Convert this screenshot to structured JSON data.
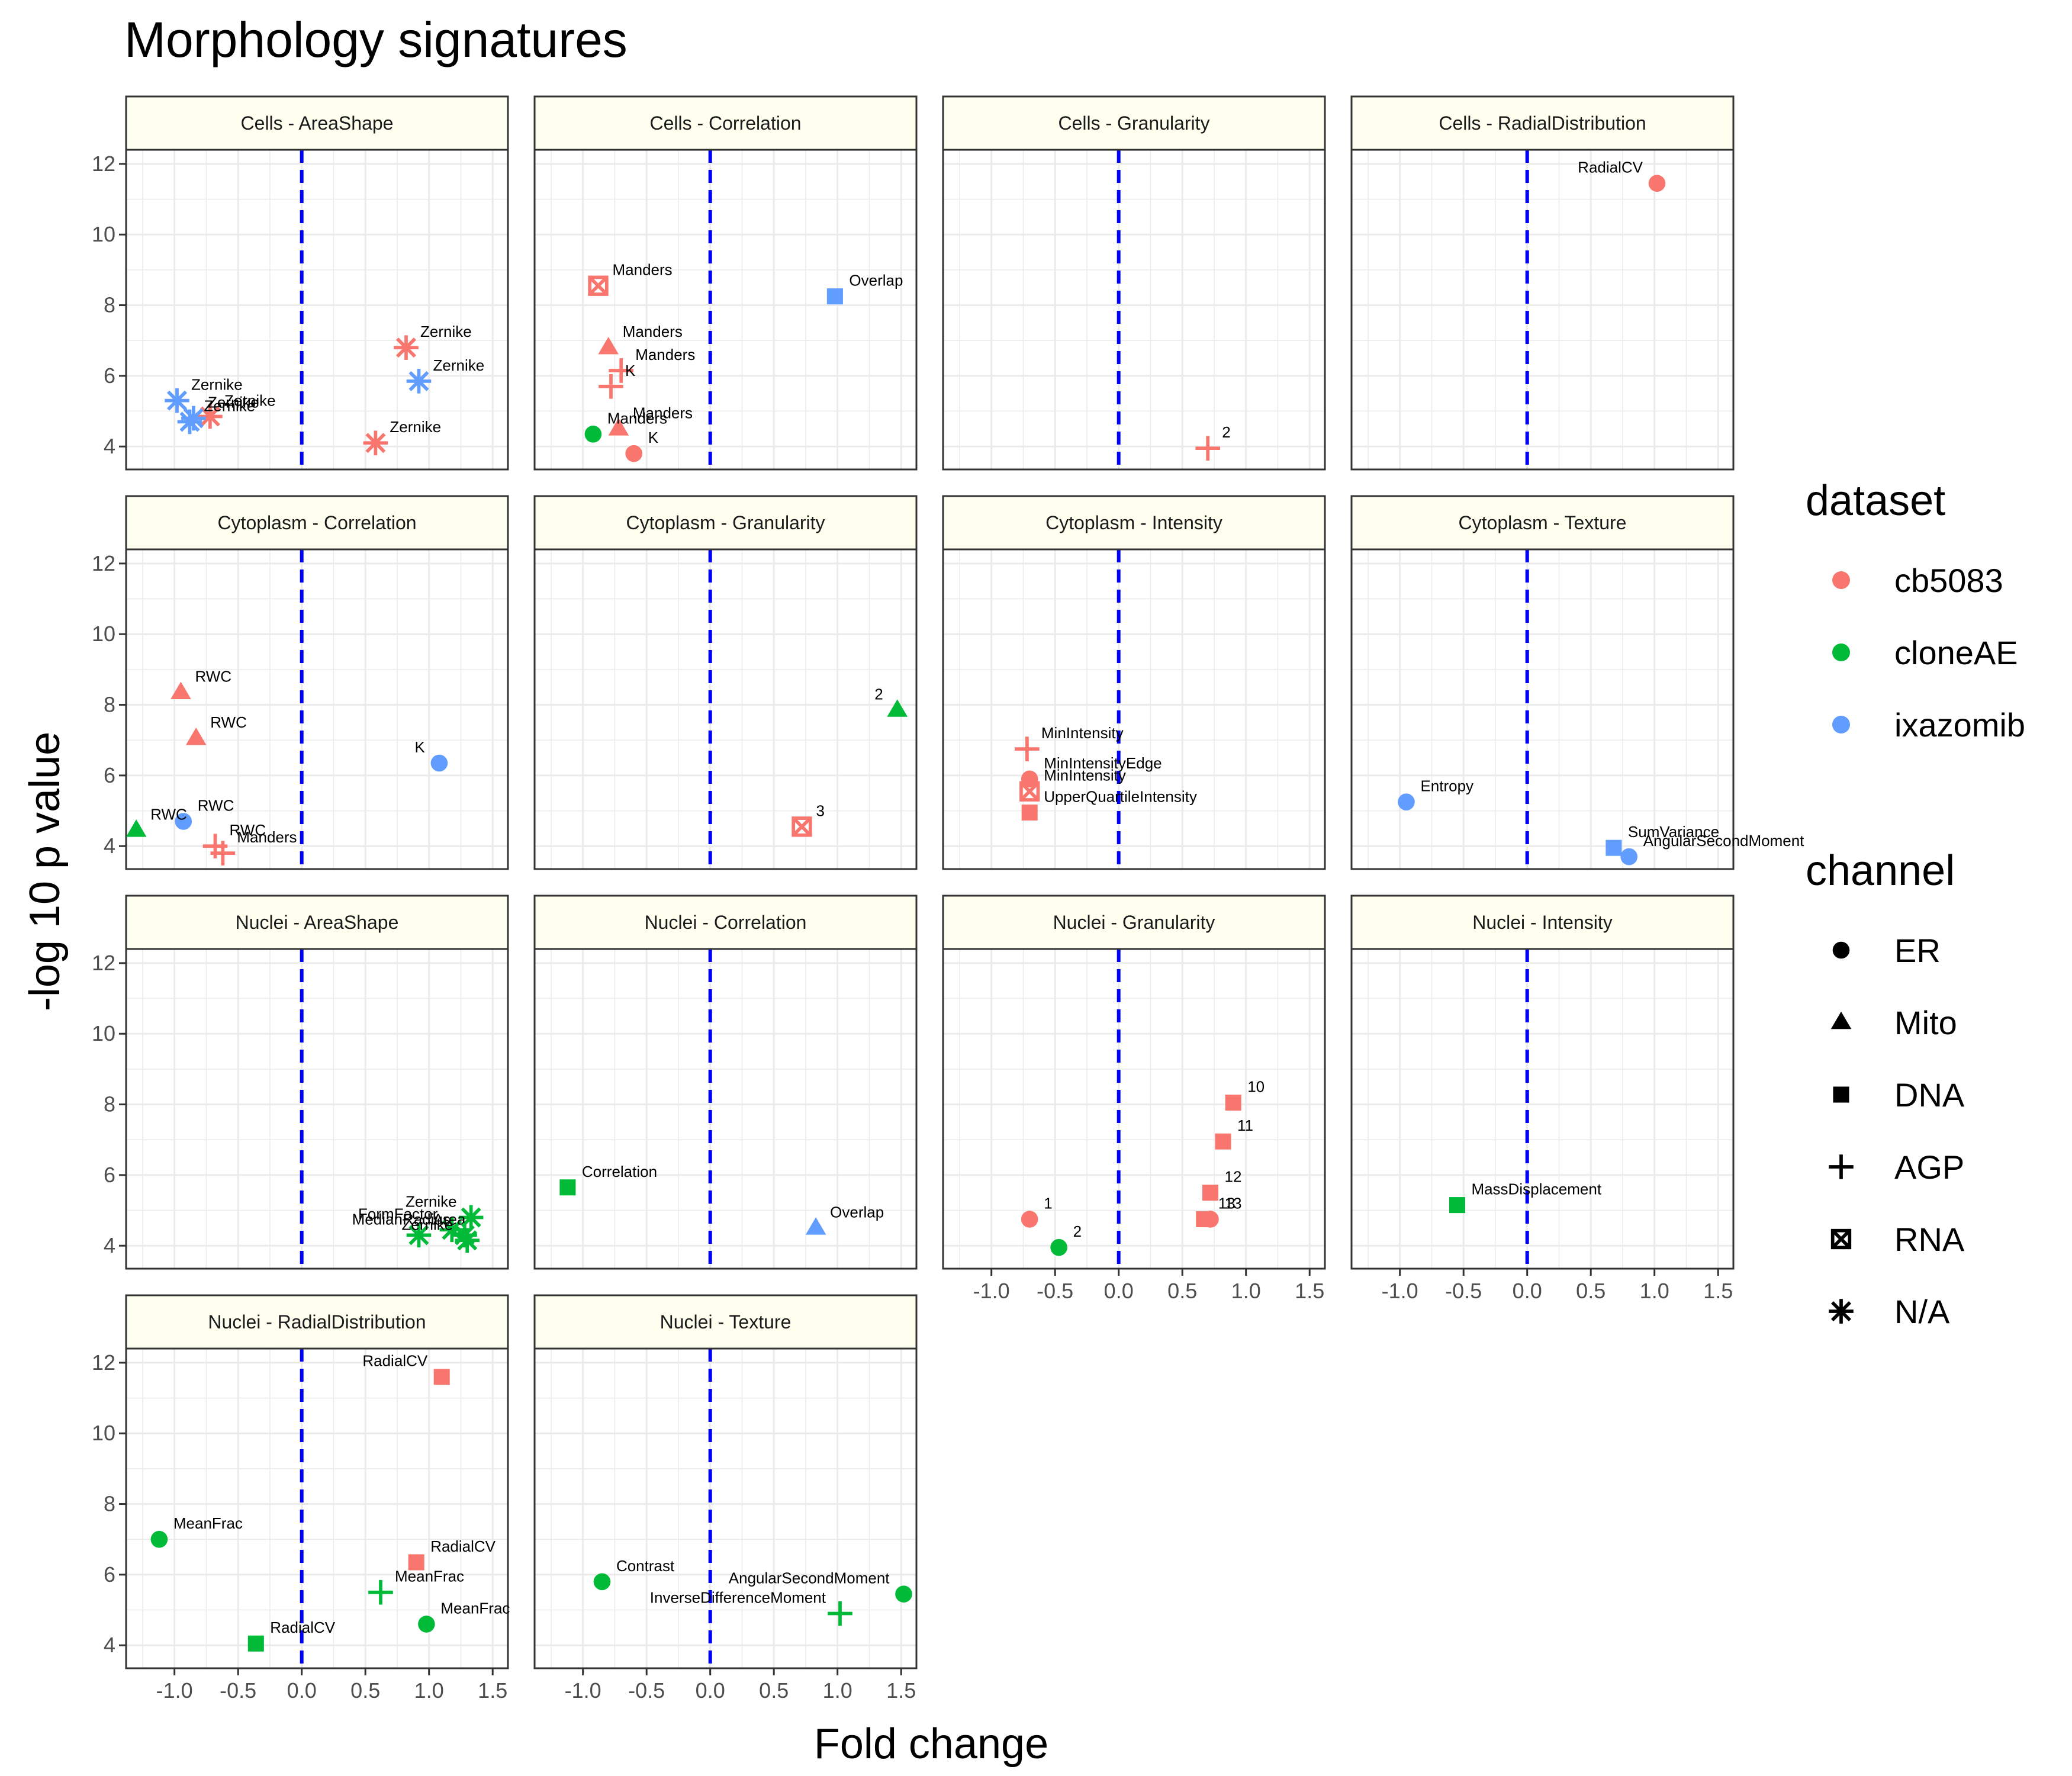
{
  "chart_data": {
    "type": "scatter",
    "title": "Morphology signatures",
    "xlabel": "Fold change",
    "ylabel": "-log 10 p value",
    "xlim": [
      -1.38,
      1.62
    ],
    "ylim": [
      3.35,
      12.4
    ],
    "xticks": [
      -1.0,
      -0.5,
      0.0,
      0.5,
      1.0,
      1.5
    ],
    "xtick_labels": [
      "-1.0",
      "-0.5",
      "0.0",
      "0.5",
      "1.0",
      "1.5"
    ],
    "yticks": [
      4,
      6,
      8,
      10,
      12
    ],
    "ytick_labels": [
      "4",
      "6",
      "8",
      "10",
      "12"
    ],
    "reference_line": {
      "x": 0,
      "color": "#0000ff",
      "style": "dashed"
    },
    "grid": true,
    "legend_position": "right",
    "legend": {
      "dataset": {
        "title": "dataset",
        "entries": [
          {
            "label": "cb5083",
            "color": "#f8766d"
          },
          {
            "label": "cloneAE",
            "color": "#00ba38"
          },
          {
            "label": "ixazomib",
            "color": "#619cff"
          }
        ]
      },
      "channel": {
        "title": "channel",
        "entries": [
          {
            "label": "ER",
            "shape": "circle"
          },
          {
            "label": "Mito",
            "shape": "triangle"
          },
          {
            "label": "DNA",
            "shape": "square"
          },
          {
            "label": "AGP",
            "shape": "plus"
          },
          {
            "label": "RNA",
            "shape": "boxx"
          },
          {
            "label": "N/A",
            "shape": "asterisk"
          }
        ]
      }
    },
    "panels": [
      {
        "title": "Cells - AreaShape",
        "points": [
          {
            "x": 0.82,
            "y": 6.8,
            "d": "cb5083",
            "c": "N/A",
            "label": "Zernike"
          },
          {
            "x": 0.92,
            "y": 5.85,
            "d": "ixazomib",
            "c": "N/A",
            "label": "Zernike"
          },
          {
            "x": -0.98,
            "y": 5.3,
            "d": "ixazomib",
            "c": "N/A",
            "label": "Zernike"
          },
          {
            "x": -0.72,
            "y": 4.85,
            "d": "cb5083",
            "c": "N/A",
            "label": "Zernike"
          },
          {
            "x": -0.88,
            "y": 4.7,
            "d": "ixazomib",
            "c": "N/A",
            "label": "Zernike"
          },
          {
            "x": 0.58,
            "y": 4.1,
            "d": "cb5083",
            "c": "N/A",
            "label": "Zernike"
          },
          {
            "x": -0.85,
            "y": 4.8,
            "d": "ixazomib",
            "c": "N/A",
            "label": "Zernike"
          }
        ]
      },
      {
        "title": "Cells - Correlation",
        "points": [
          {
            "x": -0.88,
            "y": 8.55,
            "d": "cb5083",
            "c": "RNA",
            "label": "Manders"
          },
          {
            "x": 0.98,
            "y": 8.25,
            "d": "ixazomib",
            "c": "DNA",
            "label": "Overlap"
          },
          {
            "x": -0.8,
            "y": 6.8,
            "d": "cb5083",
            "c": "Mito",
            "label": "Manders"
          },
          {
            "x": -0.7,
            "y": 6.15,
            "d": "cb5083",
            "c": "AGP",
            "label": "Manders"
          },
          {
            "x": -0.78,
            "y": 5.7,
            "d": "cb5083",
            "c": "AGP",
            "label": "K"
          },
          {
            "x": -0.72,
            "y": 4.5,
            "d": "cb5083",
            "c": "Mito",
            "label": "Manders"
          },
          {
            "x": -0.92,
            "y": 4.35,
            "d": "cloneAE",
            "c": "ER",
            "label": "Manders"
          },
          {
            "x": -0.6,
            "y": 3.8,
            "d": "cb5083",
            "c": "ER",
            "label": "K"
          }
        ]
      },
      {
        "title": "Cells - Granularity",
        "points": [
          {
            "x": 0.7,
            "y": 3.95,
            "d": "cb5083",
            "c": "AGP",
            "label": "2"
          }
        ]
      },
      {
        "title": "Cells - RadialDistribution",
        "points": [
          {
            "x": 1.02,
            "y": 11.45,
            "d": "cb5083",
            "c": "ER",
            "label": "RadialCV"
          }
        ]
      },
      {
        "title": "Cytoplasm - Correlation",
        "points": [
          {
            "x": -0.95,
            "y": 8.35,
            "d": "cb5083",
            "c": "Mito",
            "label": "RWC"
          },
          {
            "x": -0.83,
            "y": 7.05,
            "d": "cb5083",
            "c": "Mito",
            "label": "RWC"
          },
          {
            "x": 1.08,
            "y": 6.35,
            "d": "ixazomib",
            "c": "ER",
            "label": "K"
          },
          {
            "x": -0.93,
            "y": 4.7,
            "d": "ixazomib",
            "c": "ER",
            "label": "RWC"
          },
          {
            "x": -1.3,
            "y": 4.45,
            "d": "cloneAE",
            "c": "Mito",
            "label": "RWC"
          },
          {
            "x": -0.68,
            "y": 4.0,
            "d": "cb5083",
            "c": "AGP",
            "label": "RWC"
          },
          {
            "x": -0.62,
            "y": 3.8,
            "d": "cb5083",
            "c": "AGP",
            "label": "Manders"
          }
        ]
      },
      {
        "title": "Cytoplasm - Granularity",
        "points": [
          {
            "x": 1.47,
            "y": 7.85,
            "d": "cloneAE",
            "c": "Mito",
            "label": "2"
          },
          {
            "x": 0.72,
            "y": 4.55,
            "d": "cb5083",
            "c": "RNA",
            "label": "3"
          }
        ]
      },
      {
        "title": "Cytoplasm - Intensity",
        "points": [
          {
            "x": -0.72,
            "y": 6.75,
            "d": "cb5083",
            "c": "AGP",
            "label": "MinIntensity"
          },
          {
            "x": -0.7,
            "y": 5.9,
            "d": "cb5083",
            "c": "ER",
            "label": "MinIntensityEdge"
          },
          {
            "x": -0.7,
            "y": 5.55,
            "d": "cb5083",
            "c": "RNA",
            "label": "MinIntensity"
          },
          {
            "x": -0.7,
            "y": 4.95,
            "d": "cb5083",
            "c": "DNA",
            "label": "UpperQuartileIntensity"
          }
        ]
      },
      {
        "title": "Cytoplasm - Texture",
        "points": [
          {
            "x": -0.95,
            "y": 5.25,
            "d": "ixazomib",
            "c": "ER",
            "label": "Entropy"
          },
          {
            "x": 0.68,
            "y": 3.95,
            "d": "ixazomib",
            "c": "DNA",
            "label": "SumVariance"
          },
          {
            "x": 0.8,
            "y": 3.7,
            "d": "ixazomib",
            "c": "ER",
            "label": "AngularSecondMoment"
          }
        ]
      },
      {
        "title": "Nuclei - AreaShape",
        "points": [
          {
            "x": 1.33,
            "y": 4.8,
            "d": "cloneAE",
            "c": "N/A",
            "label": "Zernike"
          },
          {
            "x": 1.18,
            "y": 4.45,
            "d": "cloneAE",
            "c": "N/A",
            "label": "FormFactor"
          },
          {
            "x": 0.92,
            "y": 4.3,
            "d": "cloneAE",
            "c": "N/A",
            "label": "Area"
          },
          {
            "x": 1.28,
            "y": 4.3,
            "d": "cloneAE",
            "c": "N/A",
            "label": "MedianRadius"
          },
          {
            "x": 1.3,
            "y": 4.15,
            "d": "cloneAE",
            "c": "N/A",
            "label": "Zernike"
          }
        ]
      },
      {
        "title": "Nuclei - Correlation",
        "points": [
          {
            "x": -1.12,
            "y": 5.65,
            "d": "cloneAE",
            "c": "DNA",
            "label": "Correlation"
          },
          {
            "x": 0.83,
            "y": 4.5,
            "d": "ixazomib",
            "c": "Mito",
            "label": "Overlap"
          }
        ]
      },
      {
        "title": "Nuclei - Granularity",
        "points": [
          {
            "x": 0.9,
            "y": 8.05,
            "d": "cb5083",
            "c": "DNA",
            "label": "10"
          },
          {
            "x": 0.82,
            "y": 6.95,
            "d": "cb5083",
            "c": "DNA",
            "label": "11"
          },
          {
            "x": 0.72,
            "y": 5.5,
            "d": "cb5083",
            "c": "DNA",
            "label": "12"
          },
          {
            "x": -0.7,
            "y": 4.75,
            "d": "cb5083",
            "c": "ER",
            "label": "1"
          },
          {
            "x": 0.67,
            "y": 4.75,
            "d": "cb5083",
            "c": "DNA",
            "label": "13"
          },
          {
            "x": 0.72,
            "y": 4.75,
            "d": "cb5083",
            "c": "ER",
            "label": "13"
          },
          {
            "x": -0.47,
            "y": 3.95,
            "d": "cloneAE",
            "c": "ER",
            "label": "2"
          }
        ]
      },
      {
        "title": "Nuclei - Intensity",
        "points": [
          {
            "x": -0.55,
            "y": 5.15,
            "d": "cloneAE",
            "c": "DNA",
            "label": "MassDisplacement"
          }
        ]
      },
      {
        "title": "Nuclei - RadialDistribution",
        "points": [
          {
            "x": 1.1,
            "y": 11.6,
            "d": "cb5083",
            "c": "DNA",
            "label": "RadialCV"
          },
          {
            "x": -1.12,
            "y": 7.0,
            "d": "cloneAE",
            "c": "ER",
            "label": "MeanFrac"
          },
          {
            "x": 0.9,
            "y": 6.35,
            "d": "cb5083",
            "c": "DNA",
            "label": "RadialCV"
          },
          {
            "x": 0.62,
            "y": 5.5,
            "d": "cloneAE",
            "c": "AGP",
            "label": "MeanFrac"
          },
          {
            "x": 0.98,
            "y": 4.6,
            "d": "cloneAE",
            "c": "ER",
            "label": "MeanFrac"
          },
          {
            "x": -0.36,
            "y": 4.05,
            "d": "cloneAE",
            "c": "DNA",
            "label": "RadialCV"
          }
        ]
      },
      {
        "title": "Nuclei - Texture",
        "points": [
          {
            "x": -0.85,
            "y": 5.8,
            "d": "cloneAE",
            "c": "ER",
            "label": "Contrast"
          },
          {
            "x": 1.52,
            "y": 5.45,
            "d": "cloneAE",
            "c": "ER",
            "label": "AngularSecondMoment"
          },
          {
            "x": 1.02,
            "y": 4.9,
            "d": "cloneAE",
            "c": "AGP",
            "label": "InverseDifferenceMoment"
          }
        ]
      }
    ]
  }
}
